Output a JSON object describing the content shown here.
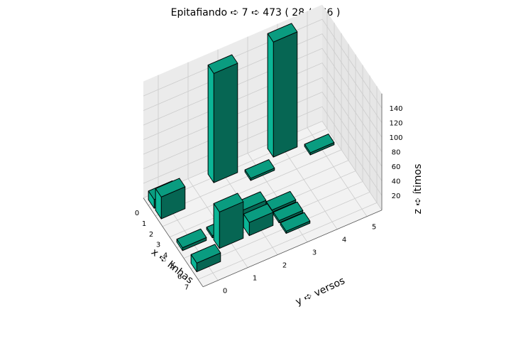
{
  "chart_data": {
    "type": "bar3d",
    "title": "Epitafiando ➪ 7 ➪ 473 ( 28 / 466 )",
    "xlabel": "x ➪ linhas",
    "ylabel": "y ➪ versos",
    "zlabel": "z ➪ ítimos",
    "x_ticks": [
      "0",
      "1",
      "2",
      "3",
      "4",
      "5",
      "6",
      "7"
    ],
    "y_ticks": [
      "0",
      "1",
      "2",
      "3",
      "4",
      "5"
    ],
    "z_ticks": [
      "20",
      "40",
      "60",
      "80",
      "100",
      "120",
      "140"
    ],
    "xlim": [
      0,
      7
    ],
    "ylim": [
      0,
      5
    ],
    "zlim": [
      0,
      150
    ],
    "grid": true,
    "bar_color": "#0aa88a",
    "bars": [
      {
        "x": 0,
        "y": 0,
        "z": 12
      },
      {
        "x": 0,
        "y": 2,
        "z": 150
      },
      {
        "x": 0,
        "y": 4,
        "z": 158
      },
      {
        "x": 1,
        "y": 0,
        "z": 30
      },
      {
        "x": 1,
        "y": 3,
        "z": 3
      },
      {
        "x": 1,
        "y": 5,
        "z": 3
      },
      {
        "x": 4,
        "y": 0,
        "z": 4
      },
      {
        "x": 4,
        "y": 1,
        "z": 3
      },
      {
        "x": 4,
        "y": 2,
        "z": 20
      },
      {
        "x": 4,
        "y": 3,
        "z": 3
      },
      {
        "x": 5,
        "y": 1,
        "z": 50
      },
      {
        "x": 5,
        "y": 2,
        "z": 18
      },
      {
        "x": 5,
        "y": 3,
        "z": 3
      },
      {
        "x": 6,
        "y": 0,
        "z": 12
      },
      {
        "x": 6,
        "y": 3,
        "z": 3
      }
    ]
  }
}
